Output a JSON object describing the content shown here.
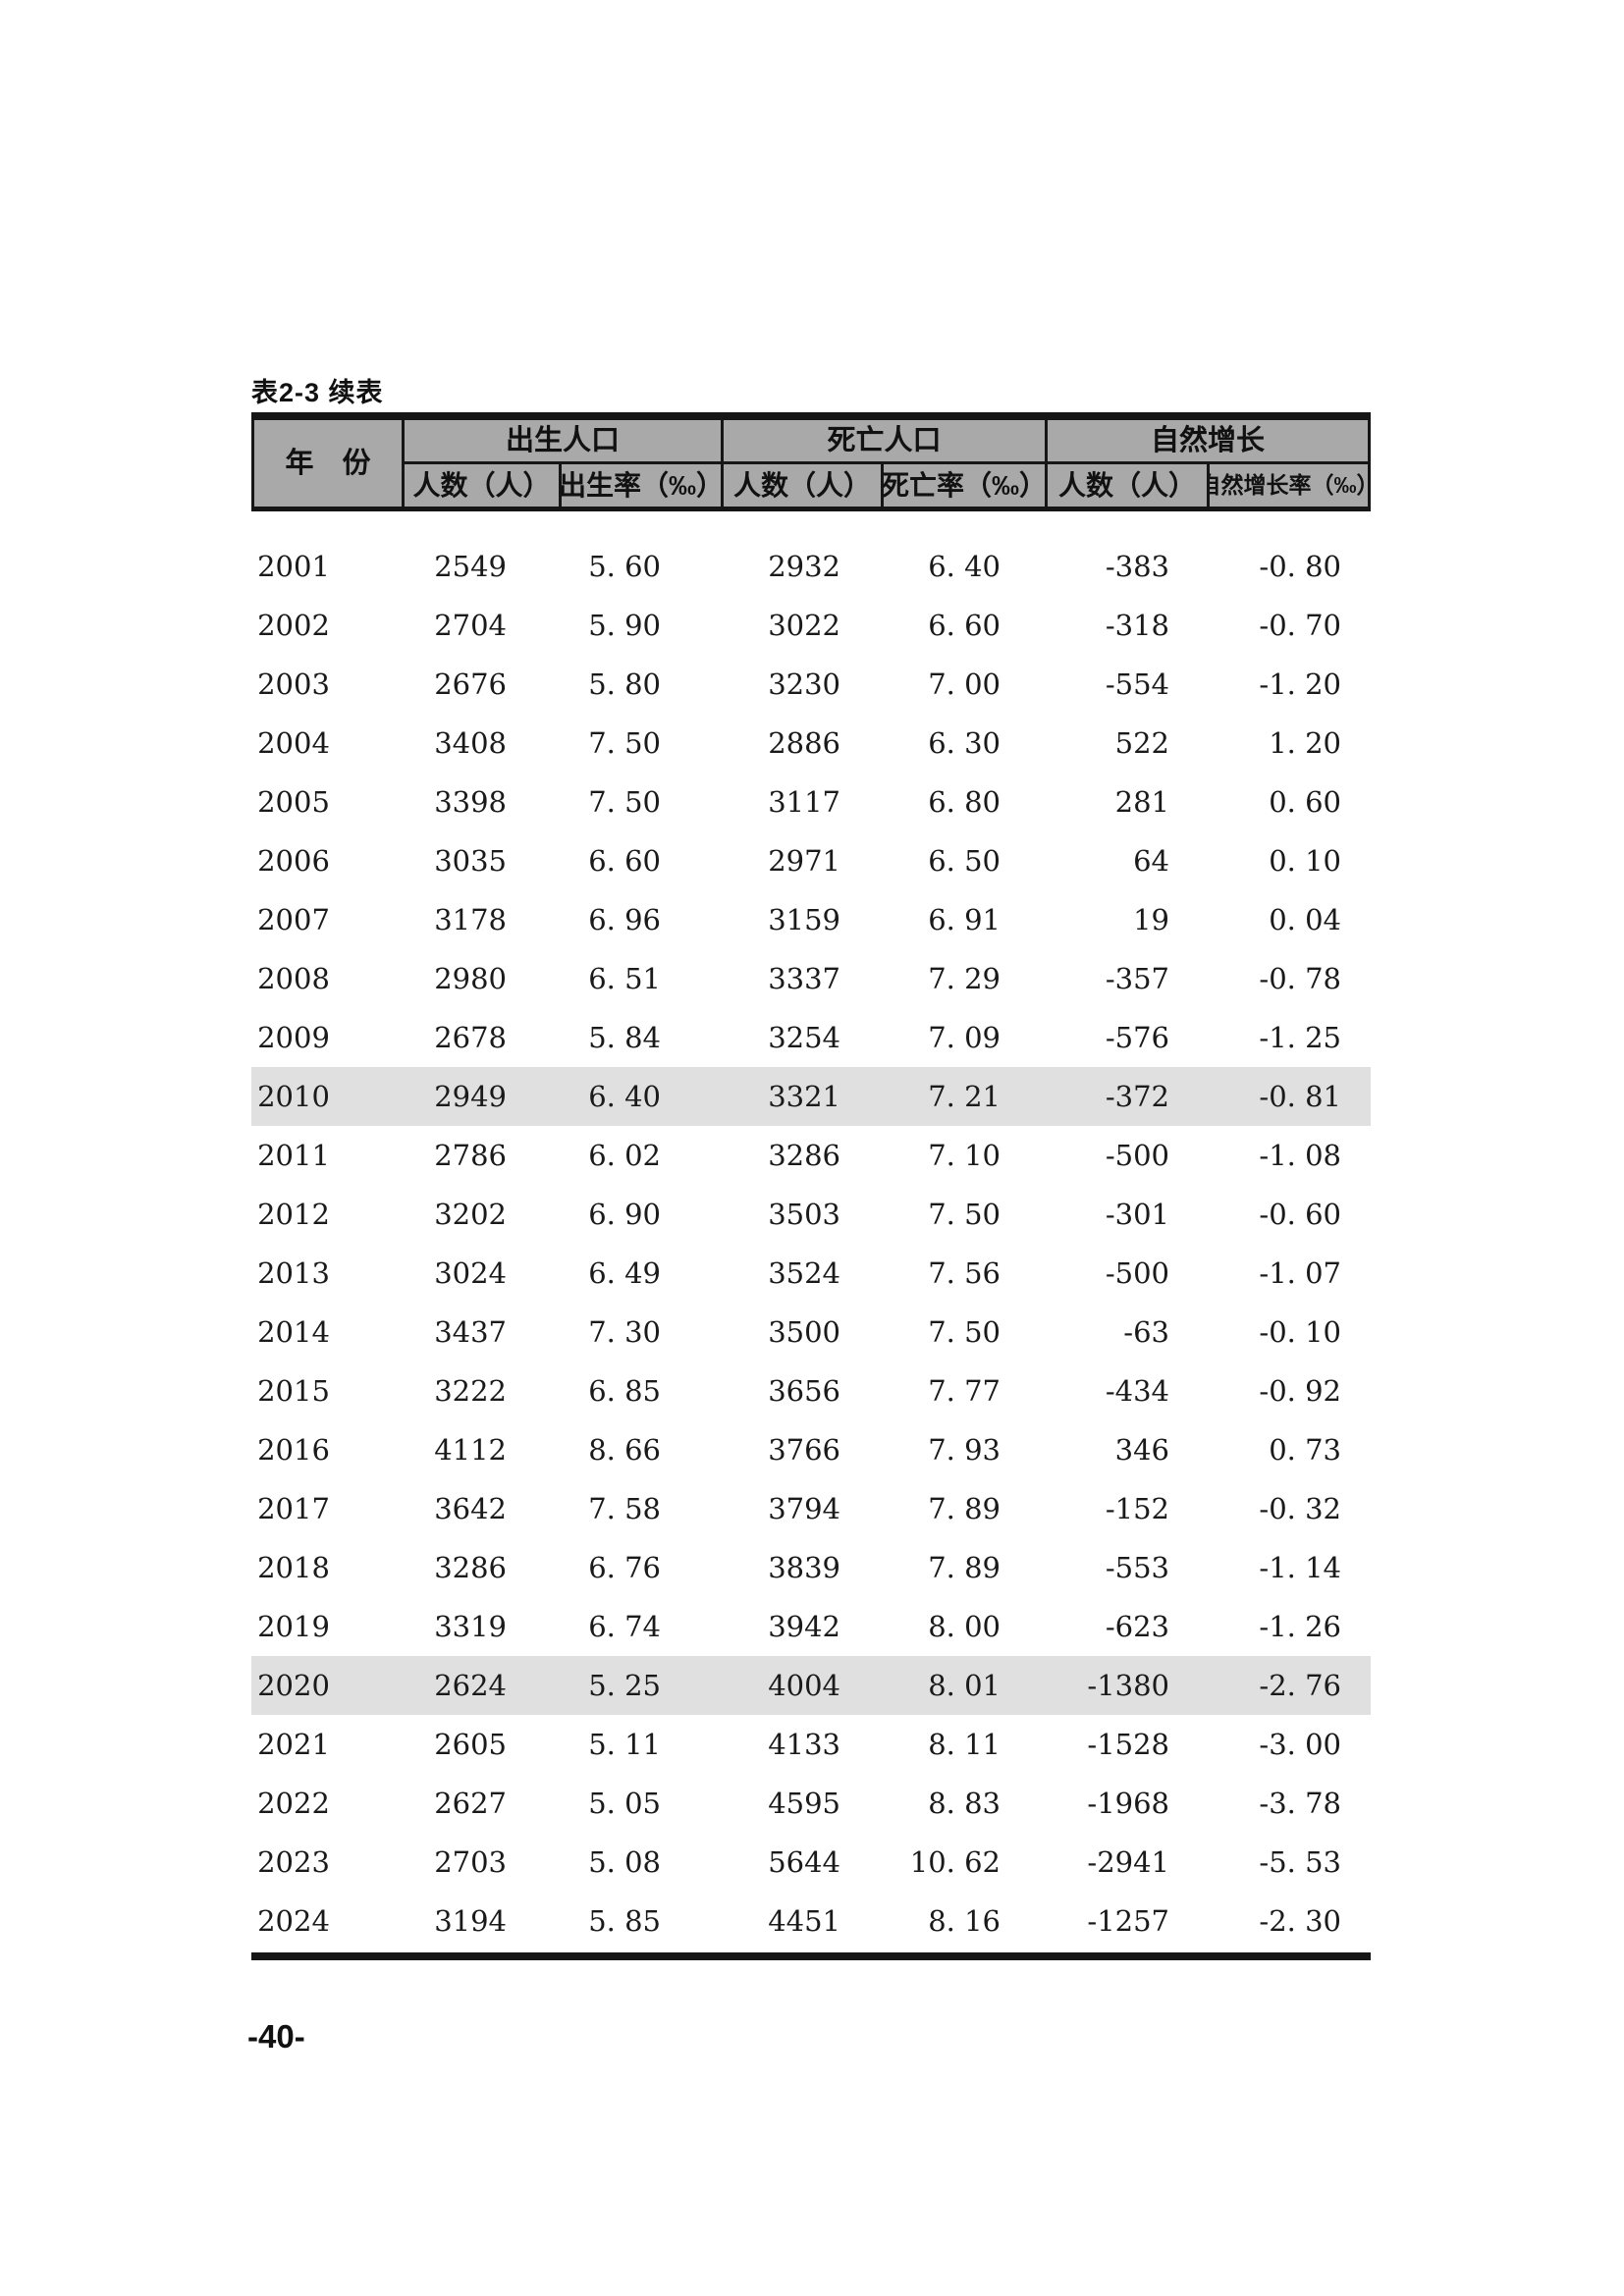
{
  "document": {
    "caption": "表2-3 续表",
    "page_number": "-40-"
  },
  "table": {
    "header": {
      "year_label": "年　份",
      "groups": [
        {
          "label": "出生人口",
          "sub": [
            "人数（人）",
            "出生率（‰）"
          ]
        },
        {
          "label": "死亡人口",
          "sub": [
            "人数（人）",
            "死亡率（‰）"
          ]
        },
        {
          "label": "自然增长",
          "sub": [
            "人数（人）",
            "自然增长率（‰）"
          ]
        }
      ]
    },
    "highlighted_years": [
      "2010",
      "2020"
    ],
    "header_bg": "#a9a9a9",
    "highlight_bg": "#e0e0e0",
    "rows": [
      {
        "year": "2001",
        "birth_count": "2549",
        "birth_rate": "5. 60",
        "death_count": "2932",
        "death_rate": "6. 40",
        "growth_count": "-383",
        "growth_rate": "-0. 80"
      },
      {
        "year": "2002",
        "birth_count": "2704",
        "birth_rate": "5. 90",
        "death_count": "3022",
        "death_rate": "6. 60",
        "growth_count": "-318",
        "growth_rate": "-0. 70"
      },
      {
        "year": "2003",
        "birth_count": "2676",
        "birth_rate": "5. 80",
        "death_count": "3230",
        "death_rate": "7. 00",
        "growth_count": "-554",
        "growth_rate": "-1. 20"
      },
      {
        "year": "2004",
        "birth_count": "3408",
        "birth_rate": "7. 50",
        "death_count": "2886",
        "death_rate": "6. 30",
        "growth_count": "522",
        "growth_rate": "1. 20"
      },
      {
        "year": "2005",
        "birth_count": "3398",
        "birth_rate": "7. 50",
        "death_count": "3117",
        "death_rate": "6. 80",
        "growth_count": "281",
        "growth_rate": "0. 60"
      },
      {
        "year": "2006",
        "birth_count": "3035",
        "birth_rate": "6. 60",
        "death_count": "2971",
        "death_rate": "6. 50",
        "growth_count": "64",
        "growth_rate": "0. 10"
      },
      {
        "year": "2007",
        "birth_count": "3178",
        "birth_rate": "6. 96",
        "death_count": "3159",
        "death_rate": "6. 91",
        "growth_count": "19",
        "growth_rate": "0. 04"
      },
      {
        "year": "2008",
        "birth_count": "2980",
        "birth_rate": "6. 51",
        "death_count": "3337",
        "death_rate": "7. 29",
        "growth_count": "-357",
        "growth_rate": "-0. 78"
      },
      {
        "year": "2009",
        "birth_count": "2678",
        "birth_rate": "5. 84",
        "death_count": "3254",
        "death_rate": "7. 09",
        "growth_count": "-576",
        "growth_rate": "-1. 25"
      },
      {
        "year": "2010",
        "birth_count": "2949",
        "birth_rate": "6. 40",
        "death_count": "3321",
        "death_rate": "7. 21",
        "growth_count": "-372",
        "growth_rate": "-0. 81"
      },
      {
        "year": "2011",
        "birth_count": "2786",
        "birth_rate": "6. 02",
        "death_count": "3286",
        "death_rate": "7. 10",
        "growth_count": "-500",
        "growth_rate": "-1. 08"
      },
      {
        "year": "2012",
        "birth_count": "3202",
        "birth_rate": "6. 90",
        "death_count": "3503",
        "death_rate": "7. 50",
        "growth_count": "-301",
        "growth_rate": "-0. 60"
      },
      {
        "year": "2013",
        "birth_count": "3024",
        "birth_rate": "6. 49",
        "death_count": "3524",
        "death_rate": "7. 56",
        "growth_count": "-500",
        "growth_rate": "-1. 07"
      },
      {
        "year": "2014",
        "birth_count": "3437",
        "birth_rate": "7. 30",
        "death_count": "3500",
        "death_rate": "7. 50",
        "growth_count": "-63",
        "growth_rate": "-0. 10"
      },
      {
        "year": "2015",
        "birth_count": "3222",
        "birth_rate": "6. 85",
        "death_count": "3656",
        "death_rate": "7. 77",
        "growth_count": "-434",
        "growth_rate": "-0. 92"
      },
      {
        "year": "2016",
        "birth_count": "4112",
        "birth_rate": "8. 66",
        "death_count": "3766",
        "death_rate": "7. 93",
        "growth_count": "346",
        "growth_rate": "0. 73"
      },
      {
        "year": "2017",
        "birth_count": "3642",
        "birth_rate": "7. 58",
        "death_count": "3794",
        "death_rate": "7. 89",
        "growth_count": "-152",
        "growth_rate": "-0. 32"
      },
      {
        "year": "2018",
        "birth_count": "3286",
        "birth_rate": "6. 76",
        "death_count": "3839",
        "death_rate": "7. 89",
        "growth_count": "-553",
        "growth_rate": "-1. 14"
      },
      {
        "year": "2019",
        "birth_count": "3319",
        "birth_rate": "6. 74",
        "death_count": "3942",
        "death_rate": "8. 00",
        "growth_count": "-623",
        "growth_rate": "-1. 26"
      },
      {
        "year": "2020",
        "birth_count": "2624",
        "birth_rate": "5. 25",
        "death_count": "4004",
        "death_rate": "8. 01",
        "growth_count": "-1380",
        "growth_rate": "-2. 76"
      },
      {
        "year": "2021",
        "birth_count": "2605",
        "birth_rate": "5. 11",
        "death_count": "4133",
        "death_rate": "8. 11",
        "growth_count": "-1528",
        "growth_rate": "-3. 00"
      },
      {
        "year": "2022",
        "birth_count": "2627",
        "birth_rate": "5. 05",
        "death_count": "4595",
        "death_rate": "8. 83",
        "growth_count": "-1968",
        "growth_rate": "-3. 78"
      },
      {
        "year": "2023",
        "birth_count": "2703",
        "birth_rate": "5. 08",
        "death_count": "5644",
        "death_rate": "10. 62",
        "growth_count": "-2941",
        "growth_rate": "-5. 53"
      },
      {
        "year": "2024",
        "birth_count": "3194",
        "birth_rate": "5. 85",
        "death_count": "4451",
        "death_rate": "8. 16",
        "growth_count": "-1257",
        "growth_rate": "-2. 30"
      }
    ]
  }
}
